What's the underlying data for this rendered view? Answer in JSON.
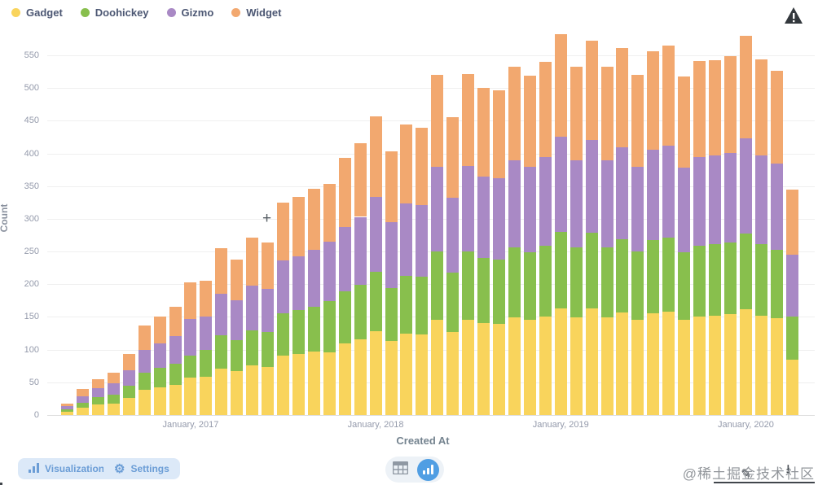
{
  "legend": {
    "note": "built from chart_data.series"
  },
  "warning_icon": "warning-triangle",
  "crosshair": "+",
  "chart_data": {
    "type": "bar",
    "stacked": true,
    "title": "",
    "xlabel": "Created At",
    "ylabel": "Count",
    "ylim": [
      0,
      590
    ],
    "yticks": [
      0,
      50,
      100,
      150,
      200,
      250,
      300,
      350,
      400,
      450,
      500,
      550
    ],
    "grid": true,
    "legend_position": "top-left",
    "x": [
      "2016-05",
      "2016-06",
      "2016-07",
      "2016-08",
      "2016-09",
      "2016-10",
      "2016-11",
      "2016-12",
      "2017-01",
      "2017-02",
      "2017-03",
      "2017-04",
      "2017-05",
      "2017-06",
      "2017-07",
      "2017-08",
      "2017-09",
      "2017-10",
      "2017-11",
      "2017-12",
      "2018-01",
      "2018-02",
      "2018-03",
      "2018-04",
      "2018-05",
      "2018-06",
      "2018-07",
      "2018-08",
      "2018-09",
      "2018-10",
      "2018-11",
      "2018-12",
      "2019-01",
      "2019-02",
      "2019-03",
      "2019-04",
      "2019-05",
      "2019-06",
      "2019-07",
      "2019-08",
      "2019-09",
      "2019-10",
      "2019-11",
      "2019-12",
      "2020-01",
      "2020-02",
      "2020-03",
      "2020-04"
    ],
    "xtick_labels": [
      "January, 2017",
      "January, 2018",
      "January, 2019",
      "January, 2020"
    ],
    "xtick_indices": [
      8,
      20,
      32,
      44
    ],
    "series": [
      {
        "name": "Gadget",
        "color": "#F9D45C",
        "values": [
          5,
          11,
          16,
          18,
          26,
          38,
          42,
          46,
          57,
          58,
          71,
          67,
          76,
          74,
          91,
          93,
          97,
          96,
          110,
          116,
          128,
          113,
          124,
          123,
          146,
          127,
          146,
          140,
          139,
          149,
          145,
          151,
          163,
          149,
          163,
          149,
          157,
          146,
          156,
          158,
          145,
          151,
          152,
          154,
          162,
          152,
          148,
          85
        ]
      },
      {
        "name": "Doohickey",
        "color": "#88BF4D",
        "values": [
          4,
          8,
          11,
          13,
          19,
          27,
          30,
          33,
          34,
          41,
          51,
          48,
          54,
          53,
          65,
          67,
          69,
          78,
          79,
          83,
          91,
          81,
          89,
          88,
          104,
          91,
          104,
          100,
          99,
          107,
          104,
          108,
          117,
          107,
          116,
          107,
          112,
          104,
          111,
          113,
          104,
          108,
          109,
          110,
          116,
          109,
          105,
          65
        ]
      },
      {
        "name": "Gizmo",
        "color": "#A989C5",
        "values": [
          5,
          10,
          14,
          17,
          23,
          35,
          38,
          42,
          56,
          51,
          64,
          60,
          68,
          66,
          81,
          83,
          87,
          91,
          98,
          104,
          114,
          101,
          111,
          110,
          130,
          114,
          131,
          125,
          124,
          133,
          130,
          135,
          146,
          133,
          141,
          133,
          140,
          130,
          139,
          141,
          129,
          135,
          136,
          137,
          145,
          136,
          132,
          95
        ]
      },
      {
        "name": "Widget",
        "color": "#F2A86F",
        "values": [
          4,
          11,
          14,
          17,
          25,
          37,
          40,
          45,
          56,
          55,
          69,
          63,
          73,
          71,
          88,
          90,
          93,
          89,
          106,
          113,
          124,
          108,
          120,
          118,
          140,
          123,
          141,
          135,
          135,
          144,
          140,
          146,
          157,
          144,
          152,
          144,
          152,
          140,
          150,
          153,
          140,
          147,
          146,
          148,
          157,
          147,
          142,
          100
        ]
      }
    ]
  },
  "footer": {
    "visualization_label": "Visualization",
    "settings_label": "Settings",
    "gear_icon": "⚙",
    "toggle": {
      "table_icon": "table-view",
      "chart_icon": "chart-view",
      "selected": "chart-view"
    }
  },
  "artifacts": {
    "watermark": "@稀土掘金技术社区",
    "edit_icon": "✎",
    "download_icon": "⭳"
  },
  "colors": {
    "brand": "#509EE3",
    "text_dark": "#4C5773",
    "axis_gray": "#949AAB",
    "button_bg": "#DCE9F8"
  }
}
